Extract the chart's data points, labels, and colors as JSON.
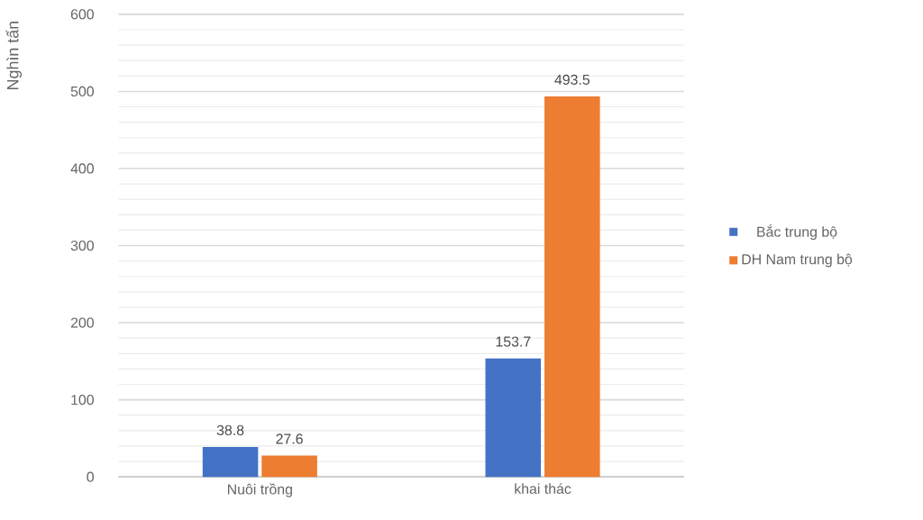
{
  "chart_data": {
    "type": "bar",
    "ylabel": "Nghìn tấn",
    "categories": [
      "Nuôi trồng",
      "khai thác"
    ],
    "series": [
      {
        "name": "Bắc trung bộ",
        "color": "#4472c4",
        "values": [
          38.8,
          153.7
        ]
      },
      {
        "name": "DH Nam trung bộ",
        "color": "#ed7d31",
        "values": [
          27.6,
          493.5
        ]
      }
    ],
    "ylim": [
      0,
      600
    ],
    "yticks": [
      0,
      100,
      200,
      300,
      400,
      500,
      600
    ],
    "grid": "y",
    "legend": "right",
    "data_labels": true
  }
}
